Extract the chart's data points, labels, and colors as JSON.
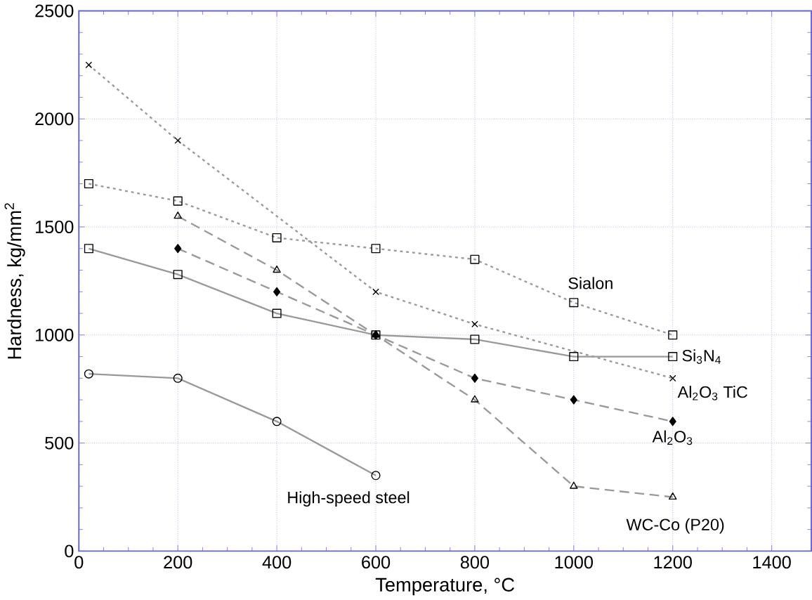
{
  "chart_data": {
    "type": "line",
    "xlabel": "Temperature, °C",
    "ylabel": "Hardness, kg/mm$^{2}$",
    "xlim": [
      0,
      1480
    ],
    "ylim": [
      0,
      2500
    ],
    "xticks": [
      0,
      200,
      400,
      600,
      800,
      1000,
      1200,
      1400
    ],
    "yticks": [
      0,
      500,
      1000,
      1500,
      2000,
      2500
    ],
    "grid": true,
    "legend": false,
    "series": [
      {
        "name": "Sialon",
        "color": "#999999",
        "marker": "square",
        "line_style": "dotted",
        "x": [
          20,
          200,
          400,
          600,
          800,
          1000,
          1200
        ],
        "values": [
          1700,
          1620,
          1450,
          1400,
          1350,
          1150,
          1000
        ]
      },
      {
        "name": "Si$_{3}$N$_{4}$",
        "color": "#999999",
        "marker": "square",
        "line_style": "solid",
        "x": [
          20,
          200,
          400,
          600,
          800,
          1000,
          1200
        ],
        "values": [
          1400,
          1280,
          1100,
          1000,
          980,
          900,
          900
        ]
      },
      {
        "name": "Al$_{2}$O$_{3}$ TiC",
        "color": "#999999",
        "marker": "cross",
        "line_style": "dotted",
        "x": [
          20,
          200,
          600,
          800,
          1200
        ],
        "values": [
          2250,
          1900,
          1200,
          1050,
          800
        ]
      },
      {
        "name": "Al$_{2}$O$_{3}$",
        "color": "#999999",
        "marker": "diamond",
        "line_style": "dashed",
        "x": [
          200,
          400,
          600,
          800,
          1000,
          1200
        ],
        "values": [
          1400,
          1200,
          1000,
          800,
          700,
          600
        ]
      },
      {
        "name": "WC-Co (P20)",
        "color": "#999999",
        "marker": "triangle",
        "line_style": "dashed",
        "x": [
          200,
          400,
          600,
          800,
          1000,
          1200
        ],
        "values": [
          1550,
          1300,
          1000,
          700,
          300,
          250
        ]
      },
      {
        "name": "High-speed steel",
        "color": "#999999",
        "marker": "circle",
        "line_style": "solid",
        "x": [
          20,
          200,
          400,
          600
        ],
        "values": [
          820,
          800,
          600,
          350
        ]
      }
    ]
  }
}
